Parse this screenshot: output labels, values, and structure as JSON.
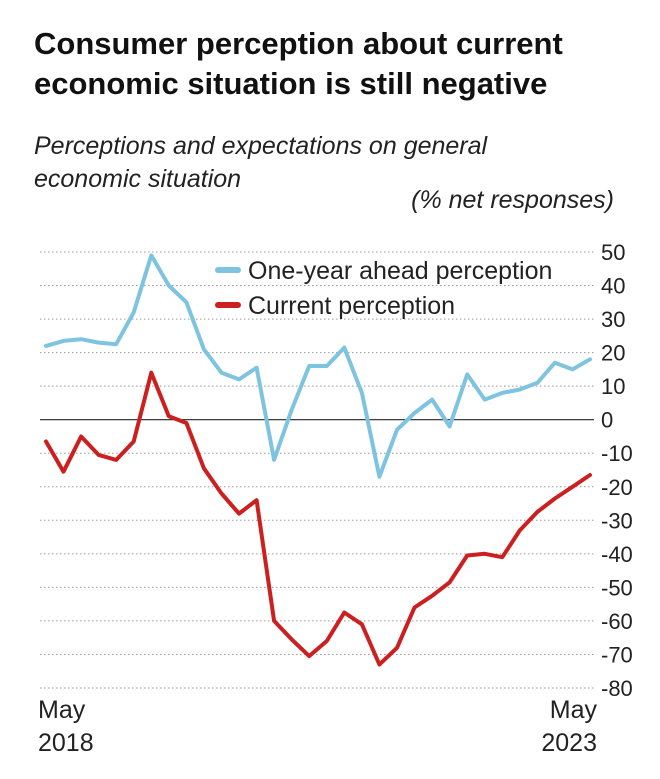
{
  "header": {
    "title": "Consumer perception about current economic situation is still negative",
    "subtitle": "Perceptions and expectations on general economic situation",
    "unit": "(% net responses)"
  },
  "colors": {
    "one_year_ahead": "#7ec3e0",
    "current": "#cc1f1f"
  },
  "chart_data": {
    "type": "line",
    "title": "Consumer perception about current economic situation is still negative",
    "subtitle": "Perceptions and expectations on general economic situation",
    "ylabel": "(% net responses)",
    "ylim": [
      -80,
      50
    ],
    "yticks": [
      50,
      40,
      30,
      20,
      10,
      0,
      -10,
      -20,
      -30,
      -40,
      -50,
      -60,
      -70,
      -80
    ],
    "grid": true,
    "legend_position": "top",
    "x_labels": [
      {
        "top": "May",
        "bottom": "2018"
      },
      {
        "top": "May",
        "bottom": "2023"
      }
    ],
    "x_start": "May 2018",
    "x_end": "May 2023",
    "series": [
      {
        "name": "One-year ahead perception",
        "color": "#7ec3e0",
        "values": [
          22,
          23.5,
          24,
          23,
          22.5,
          32,
          49,
          40,
          35,
          21,
          14,
          12,
          15.5,
          -12,
          3,
          16,
          16,
          21.5,
          8,
          -17,
          -3,
          2,
          6,
          -2,
          13.5,
          6,
          8,
          9,
          11,
          17,
          15,
          18
        ]
      },
      {
        "name": "Current perception",
        "color": "#cc1f1f",
        "values": [
          -6.5,
          -15.5,
          -5,
          -10.5,
          -12,
          -6.5,
          14,
          1,
          -1,
          -14.5,
          -22,
          -28,
          -24,
          -60,
          -65.5,
          -70.5,
          -66,
          -57.5,
          -61,
          -73,
          -68,
          -56,
          -52.5,
          -48.5,
          -40.5,
          -40,
          -41,
          -33,
          -27.5,
          -23.5,
          -20,
          -16.5
        ]
      }
    ]
  }
}
